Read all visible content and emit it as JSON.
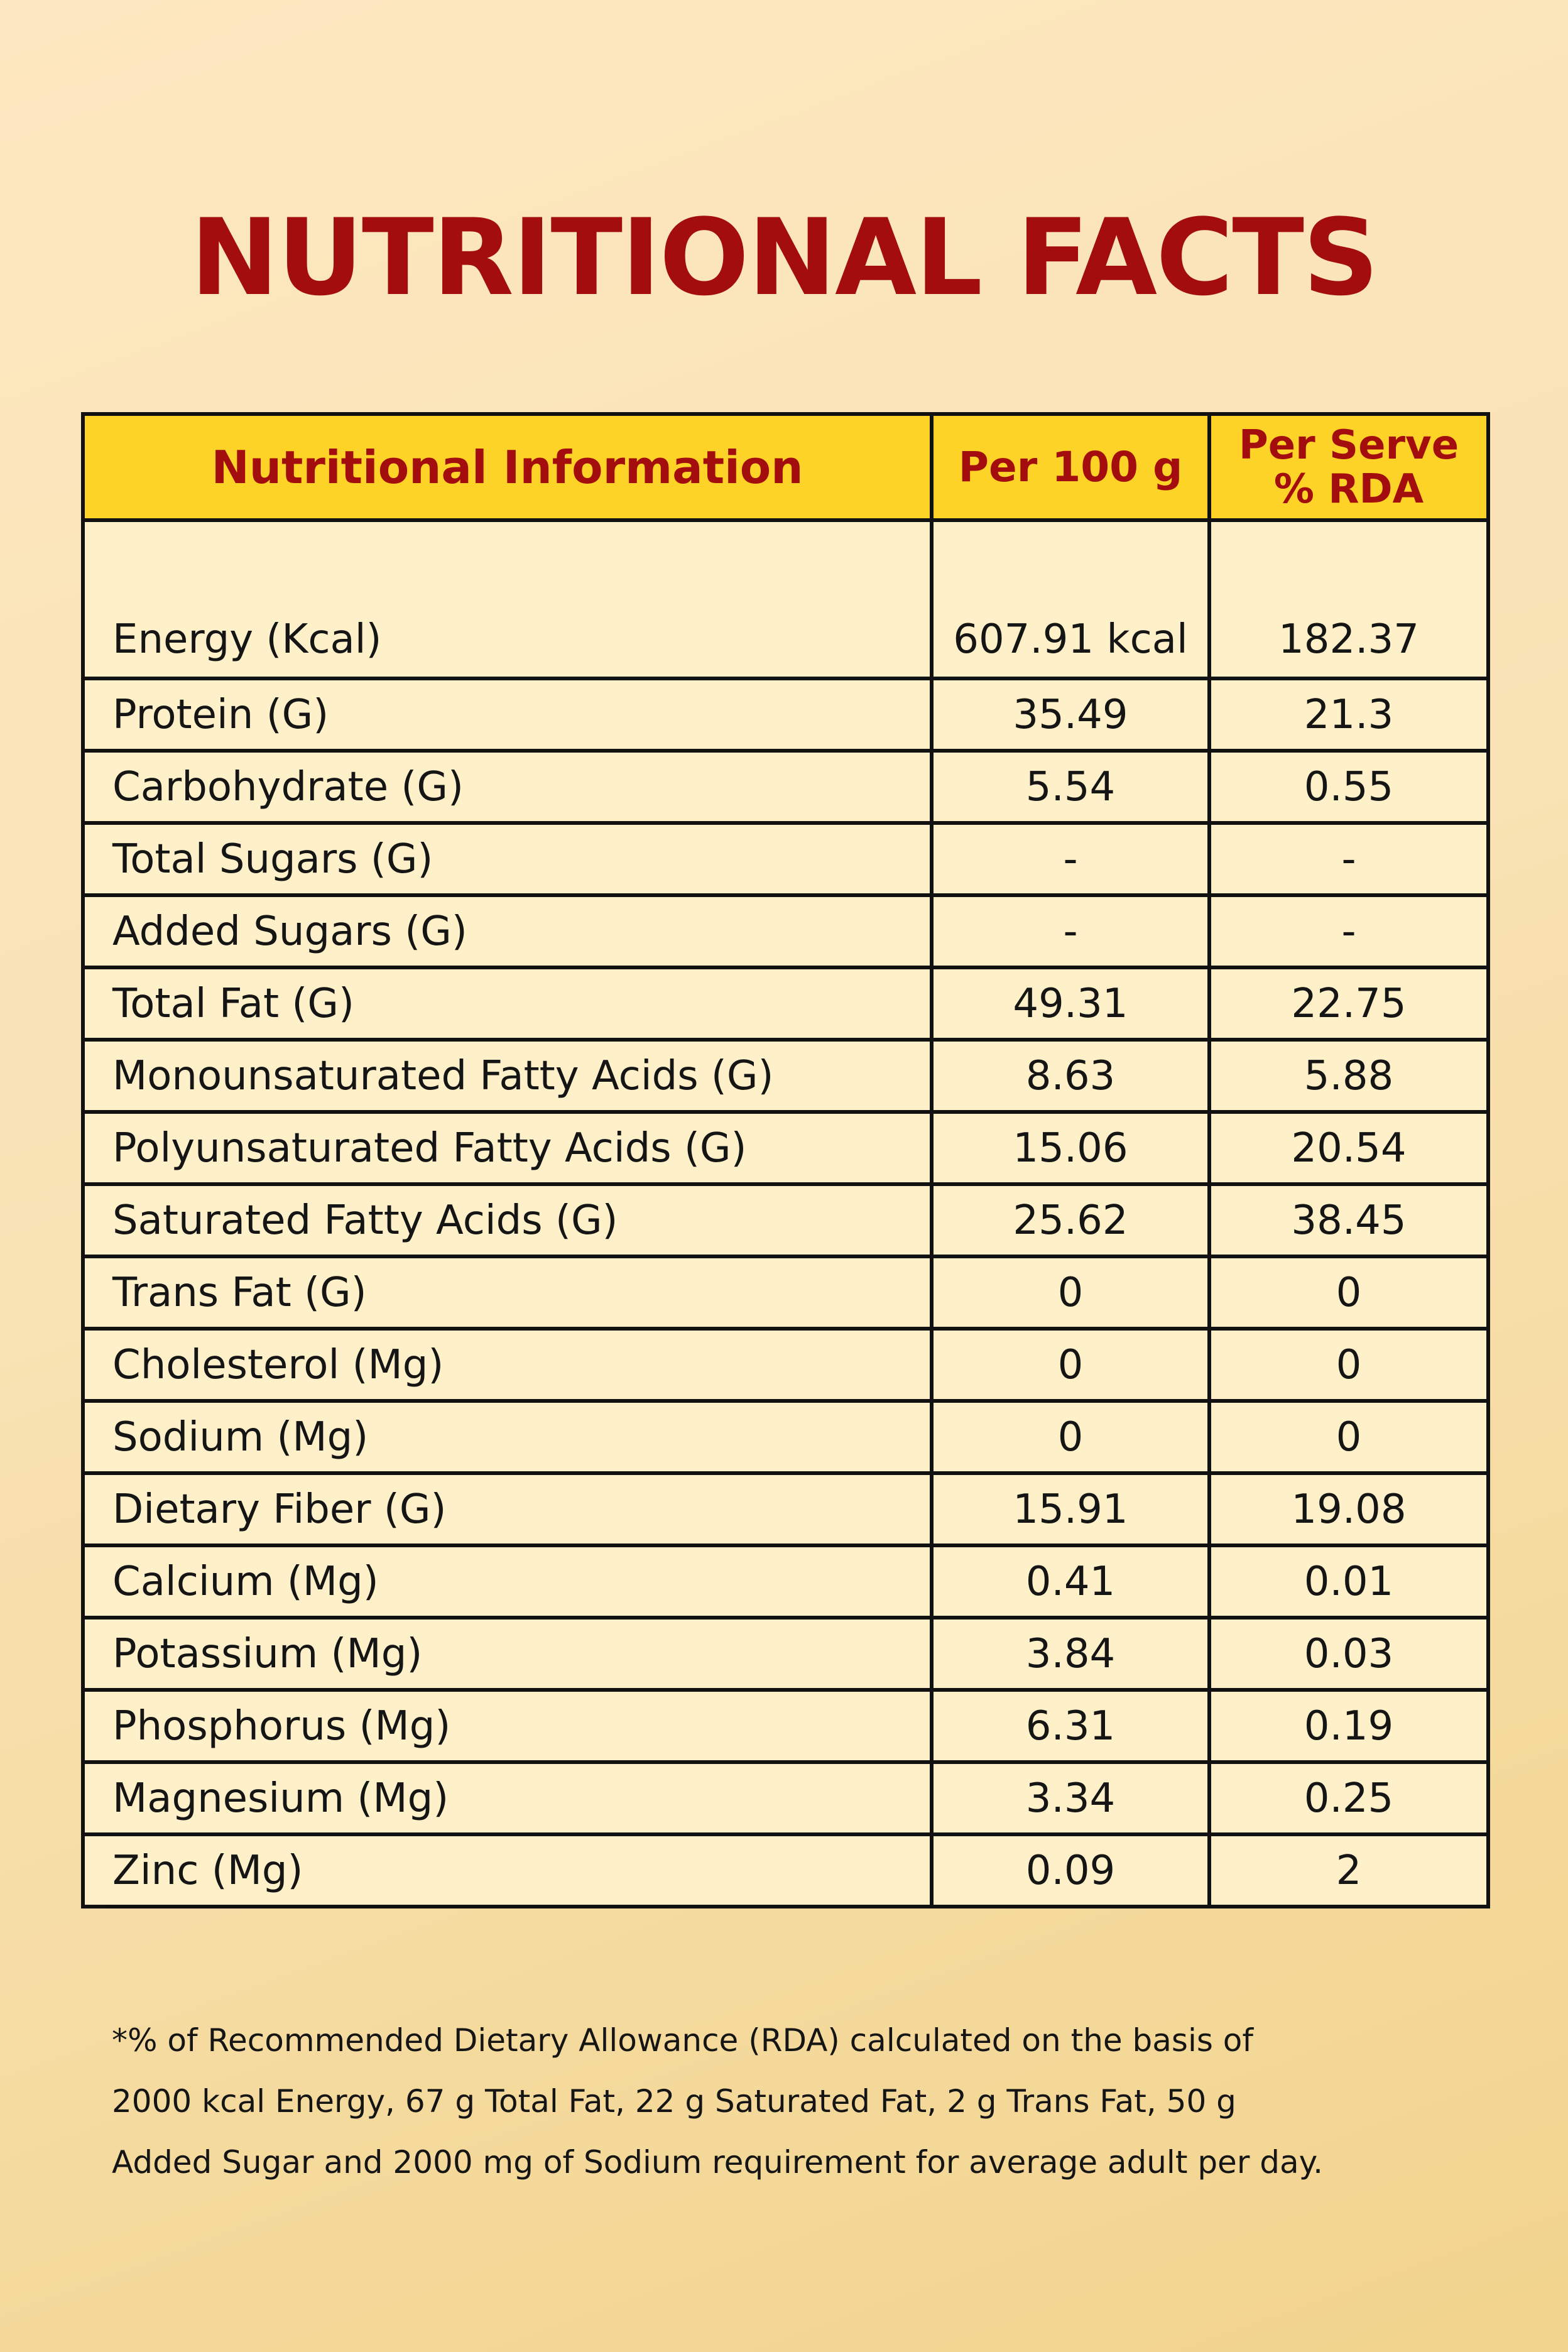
{
  "title": "NUTRITIONAL FACTS",
  "table": {
    "headers": {
      "name": "Nutritional Information",
      "per100": "Per 100 g",
      "rda_line1": "Per Serve",
      "rda_line2": "% RDA"
    },
    "rows": [
      {
        "name": "Energy (Kcal)",
        "per100": "607.91 kcal",
        "rda": "182.37"
      },
      {
        "name": "Protein (G)",
        "per100": "35.49",
        "rda": "21.3"
      },
      {
        "name": "Carbohydrate (G)",
        "per100": "5.54",
        "rda": "0.55"
      },
      {
        "name": "Total Sugars (G)",
        "per100": "-",
        "rda": "-"
      },
      {
        "name": "Added Sugars (G)",
        "per100": "-",
        "rda": "-"
      },
      {
        "name": "Total Fat (G)",
        "per100": "49.31",
        "rda": "22.75"
      },
      {
        "name": "Monounsaturated Fatty Acids (G)",
        "per100": "8.63",
        "rda": "5.88"
      },
      {
        "name": "Polyunsaturated Fatty Acids (G)",
        "per100": "15.06",
        "rda": "20.54"
      },
      {
        "name": "Saturated Fatty Acids (G)",
        "per100": "25.62",
        "rda": "38.45"
      },
      {
        "name": "Trans Fat (G)",
        "per100": "0",
        "rda": "0"
      },
      {
        "name": "Cholesterol (Mg)",
        "per100": "0",
        "rda": "0"
      },
      {
        "name": "Sodium (Mg)",
        "per100": "0",
        "rda": "0"
      },
      {
        "name": "Dietary Fiber (G)",
        "per100": "15.91",
        "rda": "19.08"
      },
      {
        "name": "Calcium (Mg)",
        "per100": "0.41",
        "rda": "0.01"
      },
      {
        "name": "Potassium (Mg)",
        "per100": "3.84",
        "rda": "0.03"
      },
      {
        "name": "Phosphorus (Mg)",
        "per100": "6.31",
        "rda": "0.19"
      },
      {
        "name": "Magnesium (Mg)",
        "per100": "3.34",
        "rda": "0.25"
      },
      {
        "name": "Zinc (Mg)",
        "per100": "0.09",
        "rda": "2"
      }
    ]
  },
  "footnote": {
    "line1": "*% of Recommended Dietary Allowance (RDA) calculated on the basis of",
    "line2": "2000 kcal Energy, 67 g Total Fat, 22 g Saturated Fat, 2 g Trans Fat, 50 g",
    "line3": "Added Sugar and 2000 mg of Sodium requirement for average adult per day."
  },
  "colors": {
    "title": "#a30d0d",
    "header_bg": "#fdd327",
    "cell_bg": "#fef0c8",
    "border": "#111111",
    "page_bg_start": "#fde7c0",
    "page_bg_end": "#f2d48d"
  }
}
